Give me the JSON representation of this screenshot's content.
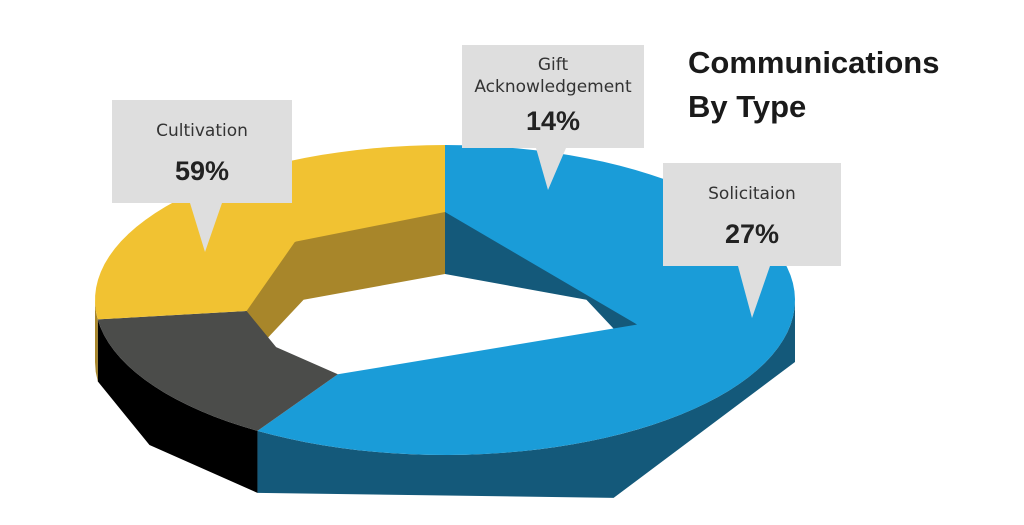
{
  "chart_data": {
    "type": "pie",
    "variant": "3d-donut",
    "title_lines": [
      "Communications",
      "By Type"
    ],
    "slices": [
      {
        "label": "Cultivation",
        "value": 59,
        "display": "59%",
        "color": "#1a9cd8",
        "side_color": "#14597a"
      },
      {
        "label": "Gift Acknowledgement",
        "label_lines": [
          "Gift",
          "Acknowledgement"
        ],
        "value": 14,
        "display": "14%",
        "color": "#4b4c4a",
        "side_color": "#000000"
      },
      {
        "label": "Solicitaion",
        "value": 27,
        "display": "27%",
        "color": "#f1c232",
        "side_color": "#a8862a"
      }
    ]
  }
}
